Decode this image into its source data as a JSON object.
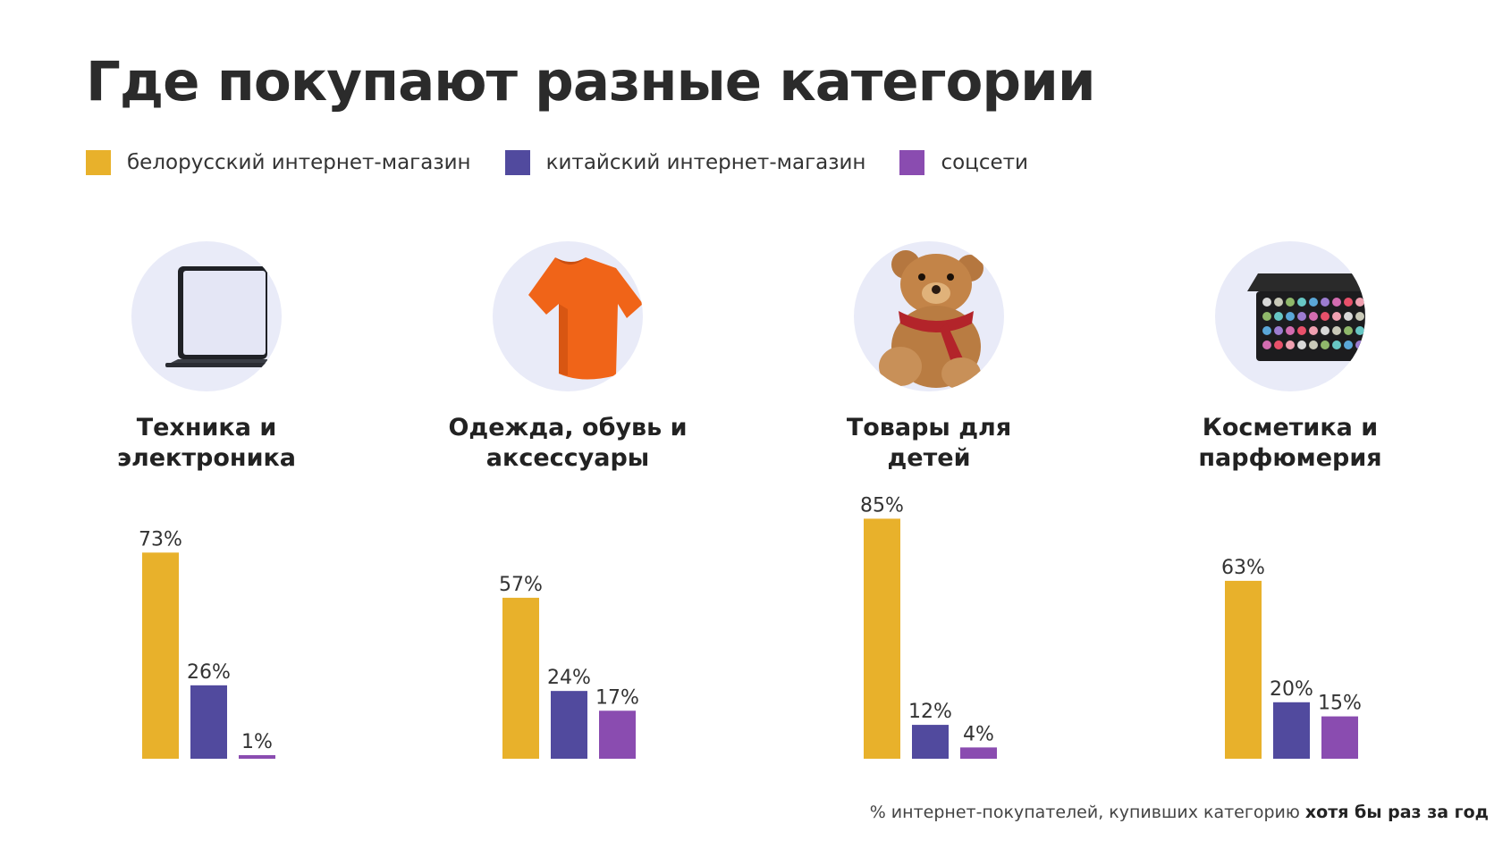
{
  "title": "Где покупают разные категории",
  "legend": [
    {
      "label": "белорусский интернет-магазин",
      "color": "#E8B12B"
    },
    {
      "label": "китайский интернет-магазин",
      "color": "#514A9E"
    },
    {
      "label": "соцсети",
      "color": "#8A4CB0"
    }
  ],
  "categories": [
    {
      "line1": "Техника и",
      "line2": "электроника",
      "icon": "laptop-icon"
    },
    {
      "line1": "Одежда, обувь и",
      "line2": "аксессуары",
      "icon": "tshirt-icon"
    },
    {
      "line1": "Товары для",
      "line2": "детей",
      "icon": "teddy-bear-icon"
    },
    {
      "line1": "Косметика и",
      "line2": "парфюмерия",
      "icon": "makeup-palette-icon"
    }
  ],
  "chart_data": {
    "type": "bar",
    "title": "Где покупают разные категории",
    "categories": [
      "Техника и электроника",
      "Одежда, обувь и аксессуары",
      "Товары для детей",
      "Косметика и парфюмерия"
    ],
    "series": [
      {
        "name": "белорусский интернет-магазин",
        "values": [
          73,
          57,
          85,
          63
        ]
      },
      {
        "name": "китайский интернет-магазин",
        "values": [
          26,
          24,
          12,
          20
        ]
      },
      {
        "name": "соцсети",
        "values": [
          1,
          17,
          4,
          15
        ]
      }
    ],
    "unit": "%",
    "ylim": [
      0,
      100
    ],
    "grid": false,
    "legend_position": "top-left"
  },
  "footnote": {
    "text": "% интернет-покупателей, купивших категорию ",
    "bold": "хотя бы раз за год"
  }
}
